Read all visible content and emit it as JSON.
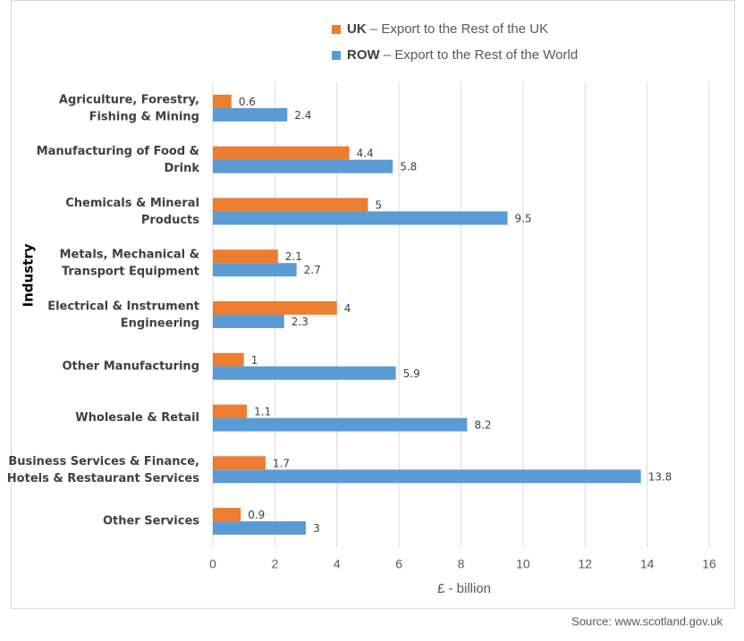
{
  "chart_data": {
    "type": "bar",
    "orientation": "horizontal",
    "categories": [
      "Agriculture, Forestry,\nFishing & Mining",
      "Manufacturing of Food &\nDrink",
      "Chemicals & Mineral\nProducts",
      "Metals, Mechanical &\nTransport Equipment",
      "Electrical & Instrument\nEngineering",
      "Other Manufacturing",
      "Wholesale & Retail",
      "Business Services & Finance,\nHotels & Restaurant Services",
      "Other Services"
    ],
    "series": [
      {
        "name": "UK",
        "legend_text": "– Export to the Rest of the UK",
        "color": "#ed7d31",
        "values": [
          0.6,
          4.4,
          5,
          2.1,
          4,
          1,
          1.1,
          1.7,
          0.9
        ]
      },
      {
        "name": "ROW",
        "legend_text": "– Export to the Rest of the World",
        "color": "#5b9bd5",
        "values": [
          2.4,
          5.8,
          9.5,
          2.7,
          2.3,
          5.9,
          8.2,
          13.8,
          3
        ]
      }
    ],
    "xlim": [
      0,
      16
    ],
    "xticks": [
      0,
      2,
      4,
      6,
      8,
      10,
      12,
      14,
      16
    ],
    "grid": true,
    "x_label": "£ - billion",
    "y_label": "Industry",
    "legend_position": "top",
    "source": "Source: www.scotland.gov.uk"
  }
}
